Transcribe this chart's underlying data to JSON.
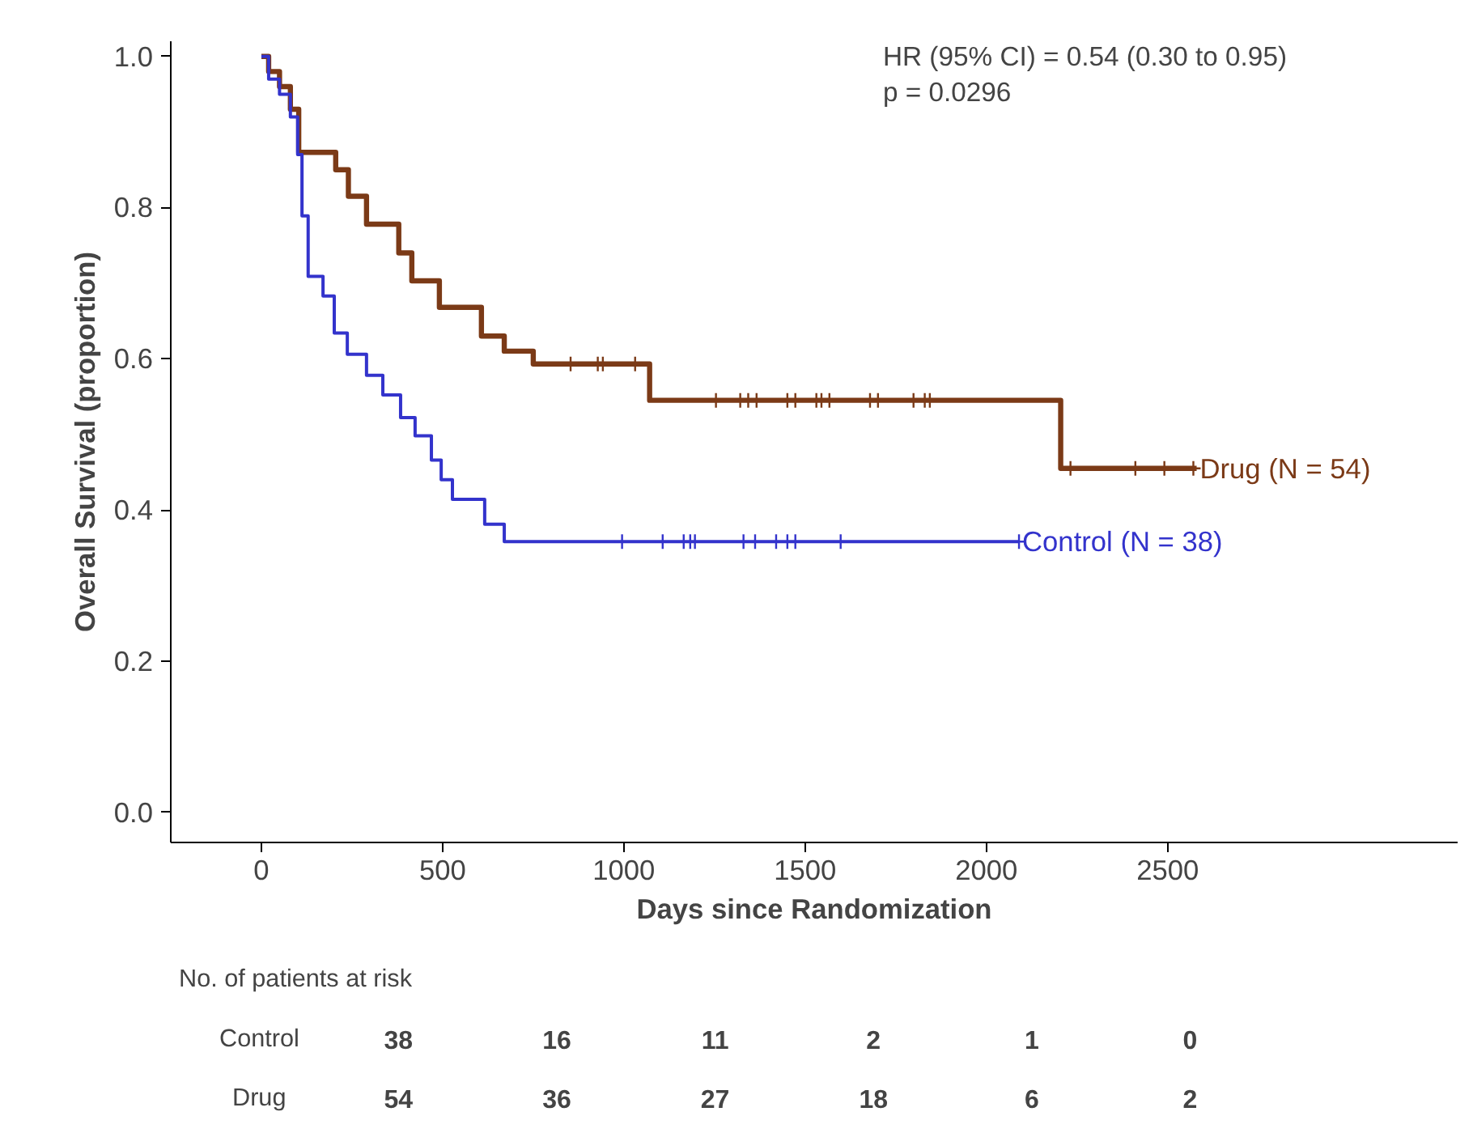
{
  "chart_data": {
    "type": "step",
    "xlabel": "Days since Randomization",
    "ylabel": "Overall Survival (proportion)",
    "xlim": [
      -250,
      3300
    ],
    "xticks": [
      0,
      500,
      1000,
      1500,
      2000,
      2500
    ],
    "ylim": [
      -0.04,
      1.02
    ],
    "yticks": [
      {
        "value": 0,
        "label": "0.0"
      },
      0.2,
      0.4,
      0.6,
      0.8,
      {
        "value": 1,
        "label": "1.0"
      }
    ],
    "grid": false,
    "legend": "right",
    "line_style": "solid",
    "series": [
      {
        "name": "Drug (N = 54)",
        "color": "#7b3a17",
        "x": [
          0,
          20,
          50,
          80,
          103,
          205,
          240,
          290,
          379,
          415,
          491,
          607,
          670,
          750,
          1071,
          2205,
          2580
        ],
        "values": [
          1.0,
          0.98,
          0.96,
          0.93,
          0.873,
          0.85,
          0.815,
          0.778,
          0.74,
          0.703,
          0.668,
          0.63,
          0.61,
          0.593,
          0.545,
          0.455,
          0.455
        ]
      },
      {
        "name": "Control (N = 38)",
        "color": "#3333cc",
        "x": [
          0,
          20,
          50,
          80,
          100,
          112,
          129,
          170,
          201,
          237,
          290,
          335,
          384,
          424,
          469,
          496,
          527,
          616,
          670,
          2090
        ],
        "values": [
          1.0,
          0.97,
          0.95,
          0.92,
          0.87,
          0.789,
          0.709,
          0.683,
          0.634,
          0.606,
          0.578,
          0.552,
          0.522,
          0.498,
          0.466,
          0.44,
          0.414,
          0.381,
          0.358,
          0.358
        ]
      },
      {
        "type": "scatter",
        "marker": "cross",
        "color": "#7b3a17",
        "x": [
          853,
          928,
          942,
          1031,
          1254,
          1321,
          1343,
          1366,
          1451,
          1473,
          1531,
          1545,
          1567,
          1679,
          1701,
          1799,
          1830,
          1844,
          2232,
          2411,
          2491,
          2571
        ],
        "values": [
          0.593,
          0.593,
          0.593,
          0.593,
          0.545,
          0.545,
          0.545,
          0.545,
          0.545,
          0.545,
          0.545,
          0.545,
          0.545,
          0.545,
          0.545,
          0.545,
          0.545,
          0.545,
          0.455,
          0.455,
          0.455,
          0.455
        ]
      },
      {
        "type": "scatter",
        "marker": "cross",
        "color": "#3333cc",
        "x": [
          995,
          1107,
          1165,
          1183,
          1196,
          1330,
          1362,
          1420,
          1451,
          1473,
          1598,
          2090
        ],
        "values": [
          0.358,
          0.358,
          0.358,
          0.358,
          0.358,
          0.358,
          0.358,
          0.358,
          0.358,
          0.358,
          0.358,
          0.358
        ]
      }
    ],
    "annotations": [
      "HR (95% CI) = 0.54 (0.30 to 0.95)",
      "p = 0.0296",
      "No. of patients at risk",
      "Control",
      "38",
      "16",
      "11",
      "2",
      "1",
      "0",
      "Drug",
      "54",
      "36",
      "27",
      "18",
      "6",
      "2"
    ]
  }
}
